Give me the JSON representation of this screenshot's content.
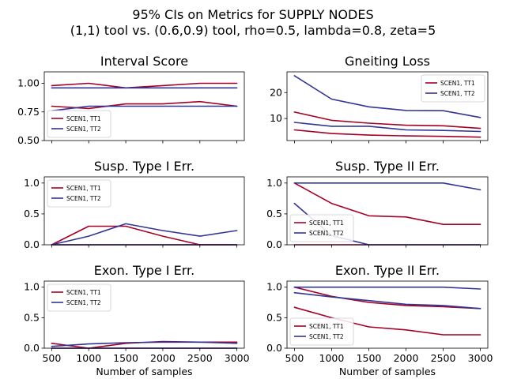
{
  "figure": {
    "title_line1": "95% CIs on Metrics for SUPPLY NODES",
    "title_line2": "(1,1) tool vs. (0.6,0.9) tool, rho=0.5, lambda=0.8, zeta=5"
  },
  "colors": {
    "tt1": "#a50026",
    "tt2": "#313695"
  },
  "chart_data": [
    {
      "type": "line",
      "title": "Interval Score",
      "xlabel": "",
      "x": [
        500,
        1000,
        1500,
        2000,
        2500,
        3000
      ],
      "xlim": [
        400,
        3100
      ],
      "ylim": [
        0.5,
        1.1
      ],
      "yticks": [
        0.5,
        0.75,
        1.0
      ],
      "ytick_labels": [
        "0.50",
        "0.75",
        "1.00"
      ],
      "show_x_tick_labels": false,
      "legend": {
        "placement": "lower-left",
        "entries": [
          "SCEN1, TT1",
          "SCEN1, TT2"
        ]
      },
      "series": [
        {
          "name": "SCEN1, TT1",
          "color": "#a50026",
          "values": [
            0.98,
            1.0,
            0.96,
            0.98,
            1.0,
            1.0
          ]
        },
        {
          "color": "#a50026",
          "values": [
            0.8,
            0.78,
            0.82,
            0.82,
            0.84,
            0.8
          ]
        },
        {
          "name": "SCEN1, TT2",
          "color": "#313695",
          "values": [
            0.96,
            0.96,
            0.96,
            0.96,
            0.96,
            0.96
          ]
        },
        {
          "color": "#313695",
          "values": [
            0.76,
            0.8,
            0.8,
            0.8,
            0.8,
            0.8
          ]
        }
      ]
    },
    {
      "type": "line",
      "title": "Gneiting Loss",
      "xlabel": "",
      "x": [
        500,
        1000,
        1500,
        2000,
        2500,
        3000
      ],
      "xlim": [
        400,
        3100
      ],
      "ylim": [
        1.5,
        28
      ],
      "yticks": [
        10,
        20
      ],
      "ytick_labels": [
        "10",
        "20"
      ],
      "show_x_tick_labels": false,
      "legend": {
        "placement": "upper-right",
        "entries": [
          "SCEN1, TT1",
          "SCEN1, TT2"
        ]
      },
      "series": [
        {
          "name": "SCEN1, TT1",
          "color": "#a50026",
          "values": [
            12.5,
            9.3,
            8.2,
            7.4,
            7.2,
            6.2
          ]
        },
        {
          "color": "#a50026",
          "values": [
            5.6,
            4.2,
            3.6,
            3.3,
            3.1,
            2.8
          ]
        },
        {
          "name": "SCEN1, TT2",
          "color": "#313695",
          "values": [
            26.5,
            17.5,
            14.5,
            13.1,
            13.0,
            10.4
          ]
        },
        {
          "color": "#313695",
          "values": [
            8.5,
            7.0,
            7.0,
            5.6,
            5.4,
            5.0
          ]
        }
      ]
    },
    {
      "type": "line",
      "title": "Susp. Type I Err.",
      "xlabel": "",
      "x": [
        500,
        1000,
        1500,
        2000,
        2500,
        3000
      ],
      "xlim": [
        400,
        3100
      ],
      "ylim": [
        0,
        1.1
      ],
      "yticks": [
        0.0,
        0.5,
        1.0
      ],
      "ytick_labels": [
        "0.0",
        "0.5",
        "1.0"
      ],
      "show_x_tick_labels": false,
      "legend": {
        "placement": "upper-left",
        "entries": [
          "SCEN1, TT1",
          "SCEN1, TT2"
        ]
      },
      "series": [
        {
          "name": "SCEN1, TT1",
          "color": "#a50026",
          "values": [
            0.0,
            0.3,
            0.3,
            0.14,
            0.0,
            0.0
          ]
        },
        {
          "color": "#a50026",
          "values": [
            0.0,
            0.0,
            0.0,
            0.0,
            0.0,
            0.0
          ]
        },
        {
          "name": "SCEN1, TT2",
          "color": "#313695",
          "values": [
            0.0,
            0.14,
            0.34,
            0.23,
            0.14,
            0.23
          ]
        },
        {
          "color": "#313695",
          "values": [
            0.0,
            0.0,
            0.0,
            0.0,
            0.0,
            0.0
          ]
        }
      ]
    },
    {
      "type": "line",
      "title": "Susp. Type II Err.",
      "xlabel": "",
      "x": [
        500,
        1000,
        1500,
        2000,
        2500,
        3000
      ],
      "xlim": [
        400,
        3100
      ],
      "ylim": [
        0,
        1.1
      ],
      "yticks": [
        0.0,
        0.5,
        1.0
      ],
      "ytick_labels": [
        "0.0",
        "0.5",
        "1.0"
      ],
      "show_x_tick_labels": false,
      "legend": {
        "placement": "lower-left",
        "entries": [
          "SCEN1, TT1",
          "SCEN1, TT2"
        ]
      },
      "series": [
        {
          "name": "SCEN1, TT1",
          "color": "#a50026",
          "values": [
            1.0,
            0.67,
            0.47,
            0.45,
            0.33,
            0.33
          ]
        },
        {
          "color": "#a50026",
          "values": [
            0.0,
            0.0,
            0.0,
            0.0,
            0.0,
            0.0
          ]
        },
        {
          "name": "SCEN1, TT2",
          "color": "#313695",
          "values": [
            1.0,
            1.0,
            1.0,
            1.0,
            1.0,
            0.89
          ]
        },
        {
          "color": "#313695",
          "values": [
            0.67,
            0.15,
            0.0,
            0.0,
            0.0,
            0.0
          ]
        }
      ]
    },
    {
      "type": "line",
      "title": "Exon. Type I Err.",
      "xlabel": "Number of samples",
      "x": [
        500,
        1000,
        1500,
        2000,
        2500,
        3000
      ],
      "xlim": [
        400,
        3100
      ],
      "ylim": [
        0,
        1.1
      ],
      "yticks": [
        0.0,
        0.5,
        1.0
      ],
      "ytick_labels": [
        "0.0",
        "0.5",
        "1.0"
      ],
      "show_x_tick_labels": true,
      "xtick_labels": [
        "500",
        "1000",
        "1500",
        "2000",
        "2500",
        "3000"
      ],
      "legend": {
        "placement": "upper-left",
        "entries": [
          "SCEN1, TT1",
          "SCEN1, TT2"
        ]
      },
      "series": [
        {
          "name": "SCEN1, TT1",
          "color": "#a50026",
          "values": [
            0.08,
            0.0,
            0.08,
            0.11,
            0.1,
            0.1
          ]
        },
        {
          "color": "#a50026",
          "values": [
            0.0,
            0.0,
            0.0,
            0.0,
            0.0,
            0.0
          ]
        },
        {
          "name": "SCEN1, TT2",
          "color": "#313695",
          "values": [
            0.03,
            0.07,
            0.09,
            0.1,
            0.1,
            0.08
          ]
        },
        {
          "color": "#313695",
          "values": [
            0.0,
            0.0,
            0.0,
            0.0,
            0.0,
            0.0
          ]
        }
      ]
    },
    {
      "type": "line",
      "title": "Exon. Type II Err.",
      "xlabel": "Number of samples",
      "x": [
        500,
        1000,
        1500,
        2000,
        2500,
        3000
      ],
      "xlim": [
        400,
        3100
      ],
      "ylim": [
        0,
        1.1
      ],
      "yticks": [
        0.0,
        0.5,
        1.0
      ],
      "ytick_labels": [
        "0.0",
        "0.5",
        "1.0"
      ],
      "show_x_tick_labels": true,
      "xtick_labels": [
        "500",
        "1000",
        "1500",
        "2000",
        "2500",
        "3000"
      ],
      "legend": {
        "placement": "lower-left",
        "entries": [
          "SCEN1, TT1",
          "SCEN1, TT2"
        ]
      },
      "series": [
        {
          "name": "SCEN1, TT1",
          "color": "#a50026",
          "values": [
            1.0,
            0.85,
            0.75,
            0.7,
            0.68,
            0.65
          ]
        },
        {
          "color": "#a50026",
          "values": [
            0.67,
            0.5,
            0.35,
            0.3,
            0.22,
            0.22
          ]
        },
        {
          "name": "SCEN1, TT2",
          "color": "#313695",
          "values": [
            1.0,
            1.0,
            1.0,
            1.0,
            1.0,
            0.97
          ]
        },
        {
          "color": "#313695",
          "values": [
            0.91,
            0.84,
            0.78,
            0.72,
            0.7,
            0.65
          ]
        }
      ]
    }
  ]
}
